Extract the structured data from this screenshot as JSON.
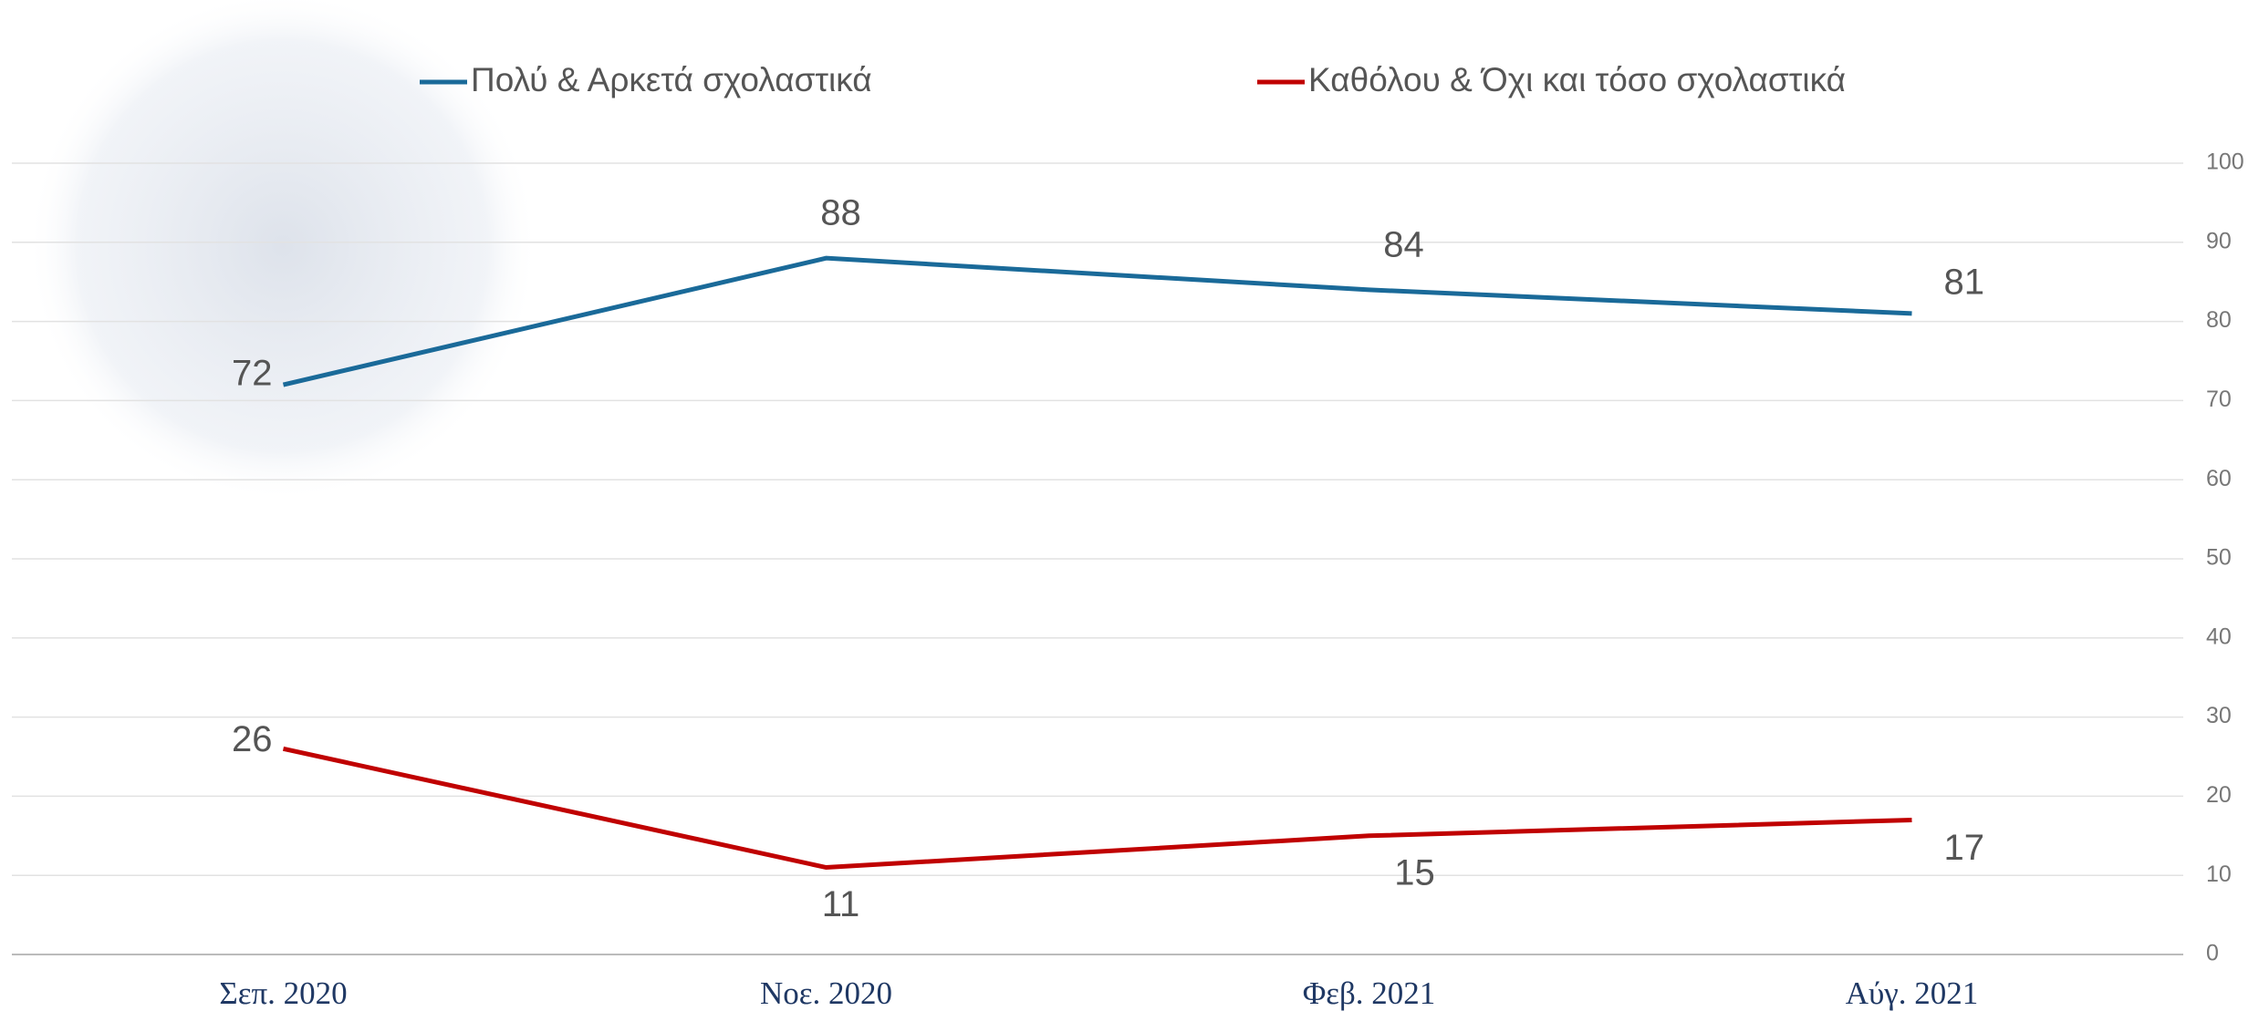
{
  "chart_data": {
    "type": "line",
    "categories": [
      "Σεπ. 2020",
      "Νοε. 2020",
      "Φεβ. 2021",
      "Αύγ. 2021"
    ],
    "series": [
      {
        "name": "Πολύ & Αρκετά σχολαστικά",
        "color": "#1a6a99",
        "values": [
          72,
          88,
          84,
          81
        ]
      },
      {
        "name": "Καθόλου & Όχι και τόσο σχολαστικά",
        "color": "#c00000",
        "values": [
          26,
          11,
          15,
          17
        ]
      }
    ],
    "ylim": [
      0,
      100
    ],
    "yticks": [
      0,
      10,
      20,
      30,
      40,
      50,
      60,
      70,
      80,
      90,
      100
    ],
    "grid": true
  }
}
